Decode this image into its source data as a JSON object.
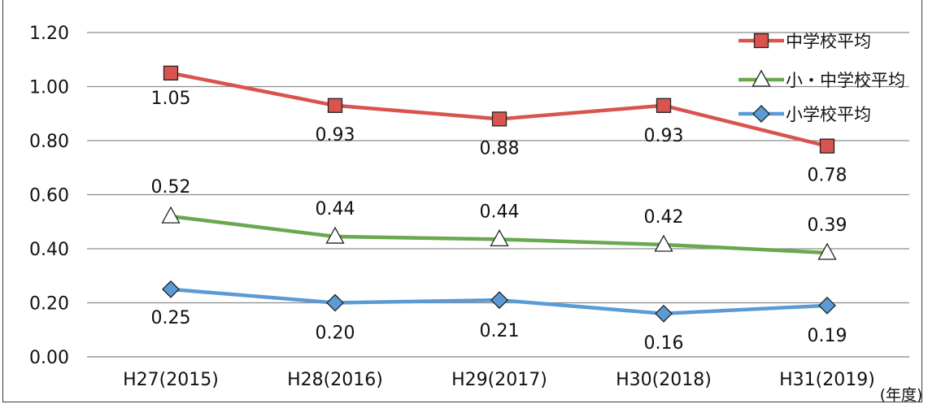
{
  "chart_data": {
    "type": "line",
    "categories": [
      "H27(2015)",
      "H28(2016)",
      "H29(2017)",
      "H30(2018)",
      "H31(2019)"
    ],
    "y_tick_labels": [
      "0.00",
      "0.20",
      "0.40",
      "0.60",
      "0.80",
      "1.00",
      "1.20"
    ],
    "ylim": [
      0,
      1.2
    ],
    "grid": true,
    "legend_position": "top-right",
    "x_unit_label": "(年度)",
    "series": [
      {
        "name": "中学校平均",
        "color": "#d9534f",
        "marker": "square",
        "values": [
          1.05,
          0.93,
          0.88,
          0.93,
          0.78
        ],
        "labels": [
          "1.05",
          "0.93",
          "0.88",
          "0.93",
          "0.78"
        ]
      },
      {
        "name": "小・中学校平均",
        "color": "#6aa84f",
        "marker": "triangle",
        "values": [
          0.52,
          0.445,
          0.435,
          0.415,
          0.385
        ],
        "labels": [
          "0.52",
          "0.44",
          "0.44",
          "0.42",
          "0.39"
        ]
      },
      {
        "name": "小学校平均",
        "color": "#5b9bd5",
        "marker": "diamond",
        "values": [
          0.25,
          0.2,
          0.21,
          0.16,
          0.19
        ],
        "labels": [
          "0.25",
          "0.20",
          "0.21",
          "0.16",
          "0.19"
        ]
      }
    ]
  }
}
